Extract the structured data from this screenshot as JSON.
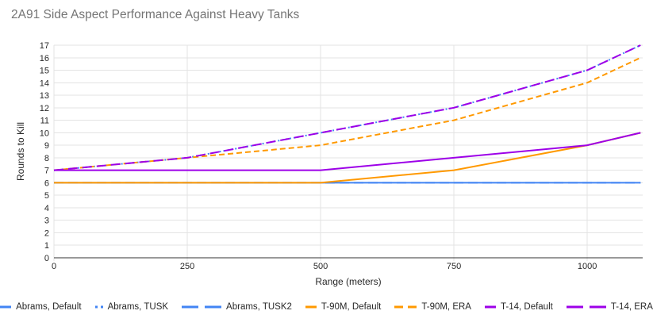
{
  "colors": {
    "abrams_blue": "#4285F4",
    "t90m_orange": "#FF9900",
    "t14_purple": "#9D00E8",
    "grid": "#e3e3e3",
    "axis": "#333333",
    "title_text": "#757575",
    "tick_text": "#282828",
    "background": "#ffffff"
  },
  "chart_data": {
    "type": "line",
    "title": "2A91 Side Aspect Performance Against Heavy Tanks",
    "xlabel": "Range (meters)",
    "ylabel": "Rounds to Kill",
    "xlim": [
      0,
      1104
    ],
    "ylim": [
      0,
      17
    ],
    "x_ticks": [
      0,
      250,
      500,
      750,
      1000
    ],
    "y_tick_step": 1,
    "grid": true,
    "legend_position": "bottom",
    "x": [
      0,
      250,
      500,
      750,
      1000,
      1100
    ],
    "series": [
      {
        "name": "Abrams, Default",
        "color": "#4285F4",
        "style": "solid",
        "values": [
          6,
          6,
          6,
          6,
          6,
          6
        ]
      },
      {
        "name": "Abrams, TUSK",
        "color": "#4285F4",
        "style": "dotted",
        "values": [
          7,
          8,
          10,
          12,
          15,
          17
        ]
      },
      {
        "name": "Abrams, TUSK2",
        "color": "#4285F4",
        "style": "longdash",
        "values": [
          6,
          6,
          6,
          6,
          6,
          6
        ]
      },
      {
        "name": "T-90M, Default",
        "color": "#FF9900",
        "style": "solid",
        "values": [
          6,
          6,
          6,
          7,
          9,
          10
        ]
      },
      {
        "name": "T-90M, ERA",
        "color": "#FF9900",
        "style": "dashed",
        "values": [
          7,
          8,
          9,
          11,
          14,
          16
        ]
      },
      {
        "name": "T-14, Default",
        "color": "#9D00E8",
        "style": "solid",
        "values": [
          7,
          7,
          7,
          8,
          9,
          10
        ]
      },
      {
        "name": "T-14, ERA",
        "color": "#9D00E8",
        "style": "longdash",
        "values": [
          7,
          8,
          10,
          12,
          15,
          17
        ]
      }
    ]
  }
}
